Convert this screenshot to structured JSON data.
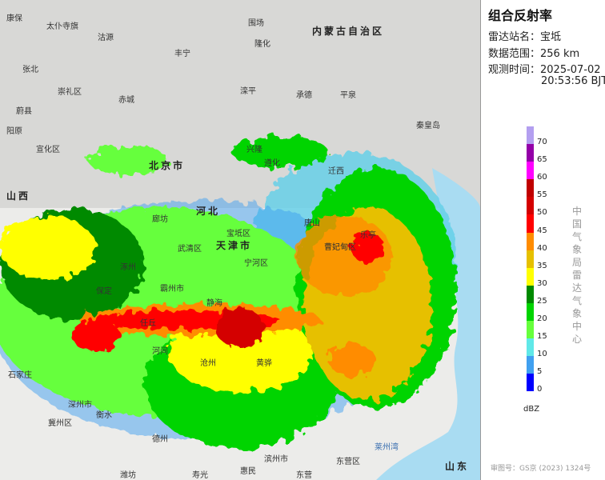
{
  "product_title": "组合反射率",
  "info": [
    {
      "label": "雷达站名：",
      "value": "宝坻"
    },
    {
      "label": "数据范围：",
      "value": "256 km"
    },
    {
      "label": "观测时间：",
      "value": "2025-07-02",
      "value2": "20:53:56 BJT"
    }
  ],
  "legend": {
    "unit": "dBZ",
    "ticks": [
      "70",
      "65",
      "60",
      "55",
      "50",
      "45",
      "40",
      "35",
      "30",
      "25",
      "20",
      "15",
      "10",
      "5",
      "0"
    ],
    "colors": [
      "#b39ff0",
      "#9400a8",
      "#ff00ff",
      "#c00000",
      "#d40000",
      "#ff0000",
      "#ff8c00",
      "#e6c000",
      "#ffff00",
      "#008a00",
      "#00d400",
      "#66ff3c",
      "#60e8e8",
      "#40a0f0",
      "#0000ff"
    ]
  },
  "credit": "中国气象局雷达气象中心",
  "approval_number": "审图号：GS京 (2023) 1324号",
  "map": {
    "regions": [
      "内蒙古自治区",
      "北京市",
      "天津市",
      "河北",
      "山西",
      "山东"
    ],
    "places": [
      "康保",
      "太仆寺旗",
      "沽源",
      "丰宁",
      "隆化",
      "围场",
      "承德",
      "平泉",
      "张北",
      "崇礼区",
      "赤城",
      "滦平",
      "兴隆",
      "迁西",
      "遵化",
      "唐山",
      "秦皇岛",
      "宝坻区",
      "武清区",
      "静海",
      "霸州市",
      "沧州",
      "黄骅",
      "保定",
      "任丘",
      "河间",
      "廊坊",
      "莱州湾",
      "东营区",
      "滨州市",
      "德州",
      "衡水",
      "石家庄",
      "蔚县",
      "阳原",
      "宣化区",
      "涿州",
      "宁河区",
      "曹妃甸区",
      "乐亭",
      "深州市",
      "冀州区",
      "惠民",
      "东营",
      "寿光",
      "潍坊"
    ],
    "sea_label": "莱州湾"
  }
}
